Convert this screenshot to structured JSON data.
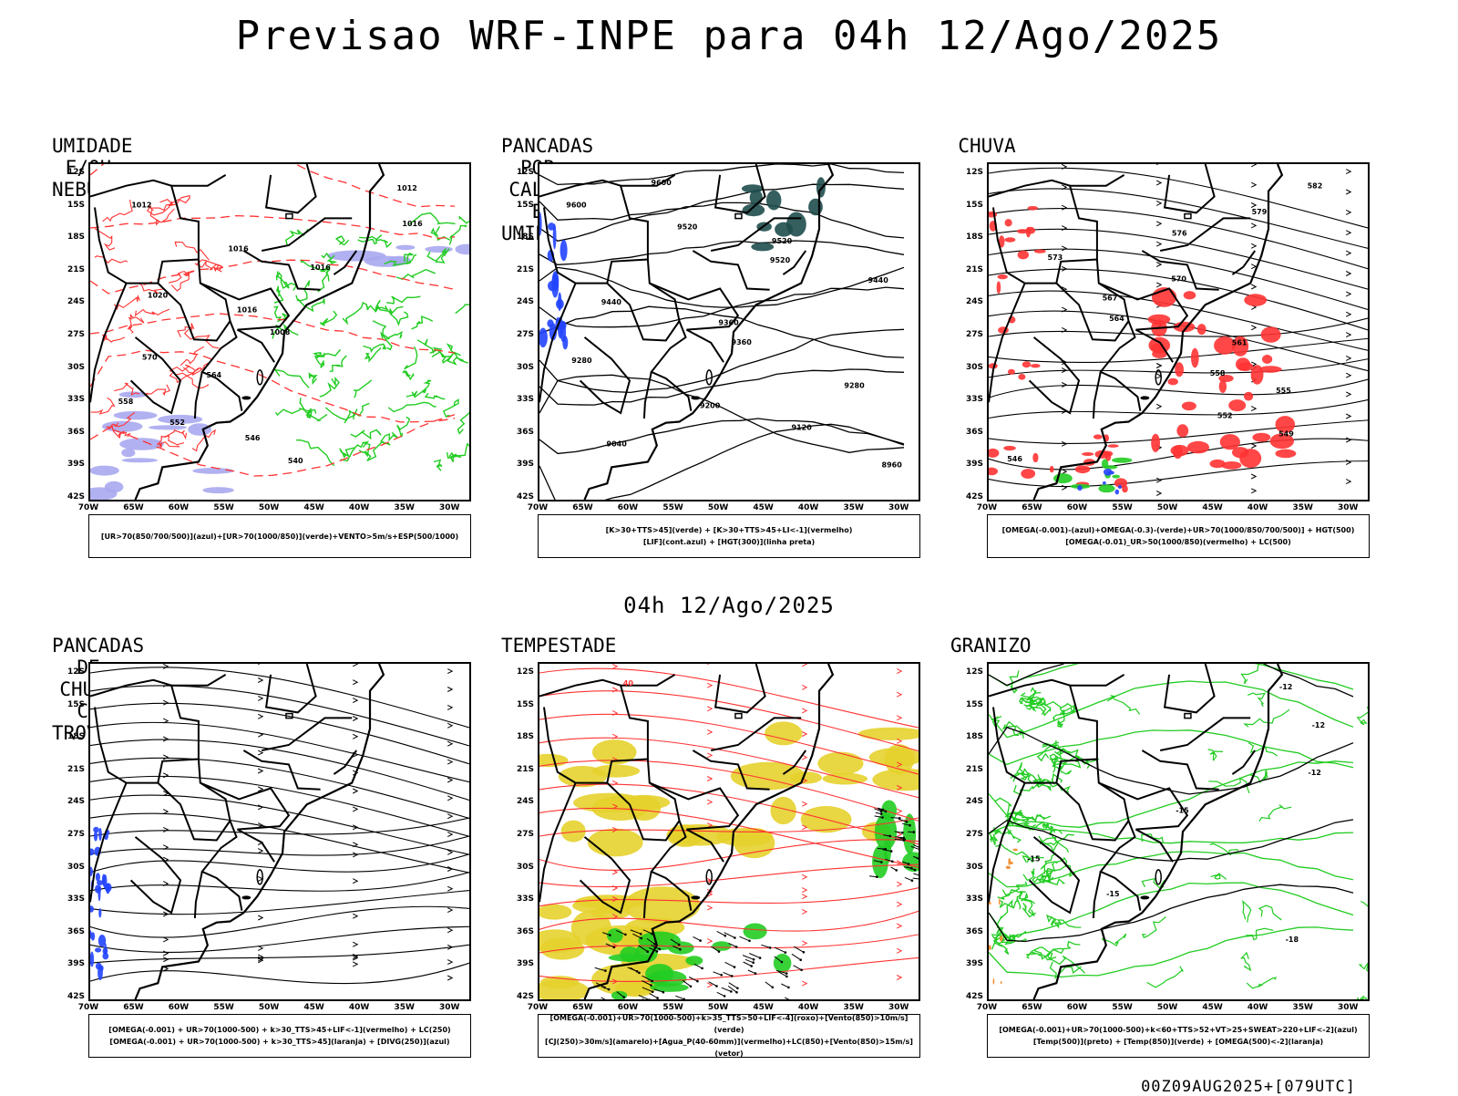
{
  "title": "Previsao WRF-INPE  para 04h 12/Ago/2025",
  "mid_time": "04h 12/Ago/2025",
  "footer": "00Z09AUG2025+[079UTC]",
  "axes": {
    "lat_labels": [
      "12S",
      "15S",
      "18S",
      "21S",
      "24S",
      "27S",
      "30S",
      "33S",
      "36S",
      "39S",
      "42S"
    ],
    "lon_labels": [
      "70W",
      "65W",
      "60W",
      "55W",
      "50W",
      "45W",
      "40W",
      "35W",
      "30W"
    ]
  },
  "colors": {
    "green": "#22cc22",
    "red": "#ff3333",
    "blue": "#2244ff",
    "lavender": "#a8a8f0",
    "yellow": "#e6d22e",
    "darkteal": "#1f4d4d"
  },
  "panels": [
    {
      "title": "UMIDADE E/OU NEBULOSIDADE",
      "legend": [
        "[UR>70(850/700/500)](azul)+[UR>70(1000/850)](verde)+VENTO>5m/s+ESP(500/1000)"
      ],
      "contour_labels": [
        "1012",
        "1012",
        "1016",
        "1016",
        "1016",
        "1020",
        "1016",
        "1008",
        "570",
        "564",
        "558",
        "552",
        "546",
        "540"
      ]
    },
    {
      "title": "PANCADAS POR CALOR E UMIDADE",
      "legend": [
        "[K>30+TTS>45](verde) + [K>30+TTS>45+LI<-1](vermelho)",
        "[LIF](cont.azul) + [HGT(300)](linha preta)"
      ],
      "contour_labels": [
        "9600",
        "9600",
        "9520",
        "9520",
        "9520",
        "9440",
        "9440",
        "9360",
        "9360",
        "9280",
        "9280",
        "9200",
        "9120",
        "9040",
        "8960"
      ]
    },
    {
      "title": "CHUVA",
      "legend": [
        "[OMEGA(-0.001)-(azul)+OMEGA(-0.3)-(verde)+UR>70(1000/850/700/500)] + HGT(500)",
        "[OMEGA(-0.01)_UR>50(1000/850)(vermelho) + LC(500)"
      ],
      "contour_labels": [
        "582",
        "579",
        "576",
        "573",
        "570",
        "567",
        "564",
        "561",
        "558",
        "555",
        "552",
        "549",
        "546"
      ]
    },
    {
      "title": "PANCADAS DE CHUVA C/ TROVOADAS",
      "legend": [
        "[OMEGA(-0.001) + UR>70(1000-500) + k>30_TTS>45+LIF<-1](vermelho) + LC(250)",
        "[OMEGA(-0.001) + UR>70(1000-500) + k>30_TTS>45](laranja) + [DIVG(250)](azul)"
      ],
      "contour_labels": []
    },
    {
      "title": "TEMPESTADE",
      "legend": [
        "[OMEGA(-0.001)+UR>70(1000-500)+k>35_TTS>50+LIF<-4](roxo)+[Vento(850)>10m/s](verde)",
        "[CJ(250)>30m/s](amarelo)+[Agua_P(40-60mm)](vermelho)+LC(850)+[Vento(850)>15m/s](vetor)"
      ],
      "contour_labels": [
        "40"
      ]
    },
    {
      "title": "GRANIZO",
      "legend": [
        "[OMEGA(-0.001)+UR>70(1000-500)+k<60+TTS>52+VT>25+SWEAT>220+LIF<-2](azul)",
        "[Temp(500)](preto) + [Temp(850)](verde) + [OMEGA(500)<-2](laranja)"
      ],
      "contour_labels": [
        "-12",
        "-12",
        "-12",
        "-15",
        "-15",
        "-15",
        "-18"
      ]
    }
  ]
}
